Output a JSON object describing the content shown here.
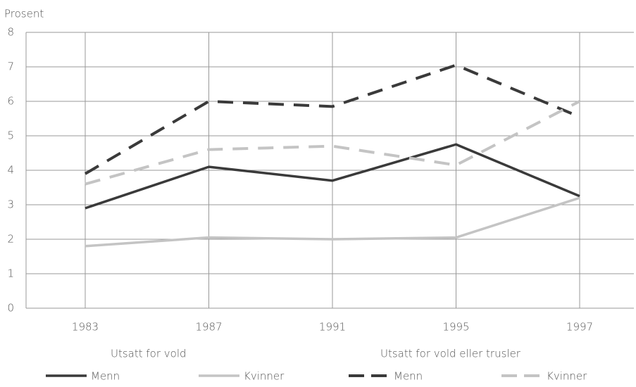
{
  "chart_data": {
    "type": "line",
    "y_label": "Prosent",
    "categories": [
      "1983",
      "1987",
      "1991",
      "1995",
      "1997"
    ],
    "series": [
      {
        "name": "Menn",
        "color": "#3a3a3a",
        "dashed": false,
        "values": [
          2.9,
          4.1,
          3.7,
          4.75,
          3.25
        ]
      },
      {
        "name": "Kvinner",
        "color": "#c4c4c4",
        "dashed": false,
        "values": [
          1.8,
          2.05,
          2.0,
          2.05,
          3.2
        ]
      },
      {
        "name": "Menn",
        "color": "#3a3a3a",
        "dashed": true,
        "values": [
          3.9,
          6.0,
          5.85,
          7.05,
          5.55
        ]
      },
      {
        "name": "Kvinner",
        "color": "#c4c4c4",
        "dashed": true,
        "values": [
          3.6,
          4.6,
          4.7,
          4.15,
          6.0
        ]
      }
    ],
    "legend_groups": [
      "Utsatt for vold",
      "Utsatt for vold eller trusler"
    ],
    "ylim": [
      0,
      8
    ],
    "yticks": [
      0,
      1,
      2,
      3,
      4,
      5,
      6,
      7,
      8
    ],
    "grid": true
  }
}
